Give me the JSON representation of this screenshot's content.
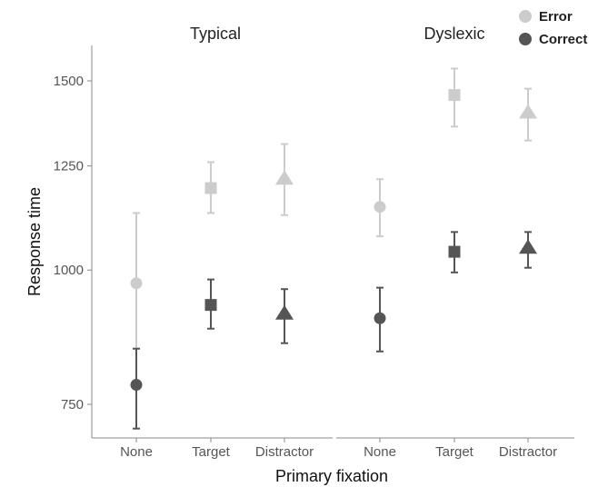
{
  "chart_data": {
    "type": "scatter",
    "xlabel": "Primary fixation",
    "ylabel": "Response time",
    "y_scale": "log",
    "ylim": [
      700,
      1580
    ],
    "y_ticks": [
      750,
      1000,
      1250,
      1500
    ],
    "categories": [
      "None",
      "Target",
      "Distractor"
    ],
    "category_shapes": [
      "circle",
      "square",
      "triangle"
    ],
    "panels": [
      "Typical",
      "Dyslexic"
    ],
    "legend_position": "top-right",
    "series": [
      {
        "name": "Error",
        "color": "#cccccc",
        "points": [
          {
            "panel": "Typical",
            "category": "None",
            "y": 972,
            "lo": 845,
            "hi": 1130
          },
          {
            "panel": "Typical",
            "category": "Target",
            "y": 1192,
            "lo": 1130,
            "hi": 1260
          },
          {
            "panel": "Typical",
            "category": "Distractor",
            "y": 1215,
            "lo": 1125,
            "hi": 1310
          },
          {
            "panel": "Dyslexic",
            "category": "None",
            "y": 1145,
            "lo": 1075,
            "hi": 1215
          },
          {
            "panel": "Dyslexic",
            "category": "Target",
            "y": 1455,
            "lo": 1360,
            "hi": 1540
          },
          {
            "panel": "Dyslexic",
            "category": "Distractor",
            "y": 1400,
            "lo": 1320,
            "hi": 1475
          }
        ]
      },
      {
        "name": "Correct",
        "color": "#555555",
        "points": [
          {
            "panel": "Typical",
            "category": "None",
            "y": 782,
            "lo": 712,
            "hi": 845
          },
          {
            "panel": "Typical",
            "category": "Target",
            "y": 928,
            "lo": 882,
            "hi": 980
          },
          {
            "panel": "Typical",
            "category": "Distractor",
            "y": 910,
            "lo": 855,
            "hi": 960
          },
          {
            "panel": "Dyslexic",
            "category": "None",
            "y": 902,
            "lo": 840,
            "hi": 963
          },
          {
            "panel": "Dyslexic",
            "category": "Target",
            "y": 1040,
            "lo": 995,
            "hi": 1085
          },
          {
            "panel": "Dyslexic",
            "category": "Distractor",
            "y": 1048,
            "lo": 1005,
            "hi": 1085
          }
        ]
      }
    ]
  }
}
